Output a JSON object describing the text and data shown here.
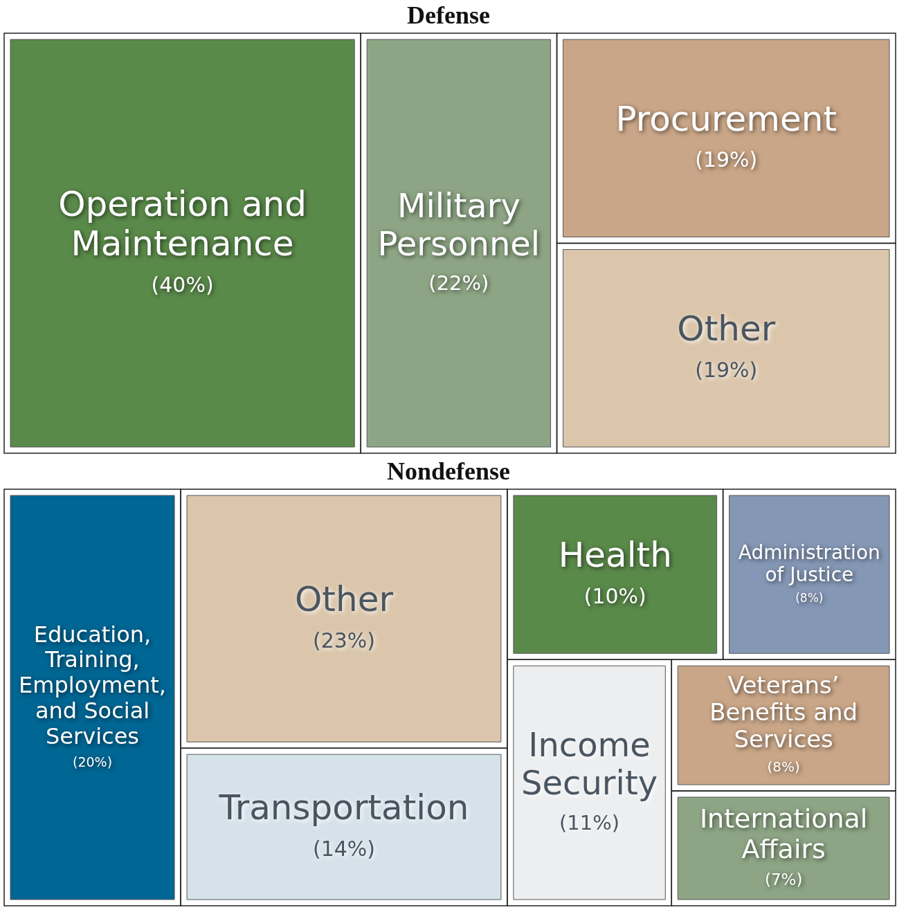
{
  "chart_data": [
    {
      "type": "other",
      "title": "Defense",
      "categories": [
        "Operation and Maintenance",
        "Military Personnel",
        "Procurement",
        "Other"
      ],
      "values": [
        40,
        22,
        19,
        19
      ],
      "value_labels": [
        "(40%)",
        "(22%)",
        "(19%)",
        "(19%)"
      ],
      "colors": [
        "#5a8a4a",
        "#8da584",
        "#c9a687",
        "#dbc6ab"
      ]
    },
    {
      "type": "other",
      "title": "Nondefense",
      "categories": [
        "Education, Training, Employment, and Social Services",
        "Other",
        "Transportation",
        "Health",
        "Administration of Justice",
        "Income Security",
        "Veterans’ Benefits and Services",
        "International Affairs"
      ],
      "values": [
        20,
        23,
        14,
        10,
        8,
        11,
        8,
        7
      ],
      "value_labels": [
        "(20%)",
        "(23%)",
        "(14%)",
        "(10%)",
        "(8%)",
        "(11%)",
        "(8%)",
        "(7%)"
      ],
      "colors": [
        "#006694",
        "#dbc6ab",
        "#d6e2ea",
        "#5a8a4a",
        "#8497b5",
        "#eceef0",
        "#c9a687",
        "#8da584"
      ]
    }
  ]
}
